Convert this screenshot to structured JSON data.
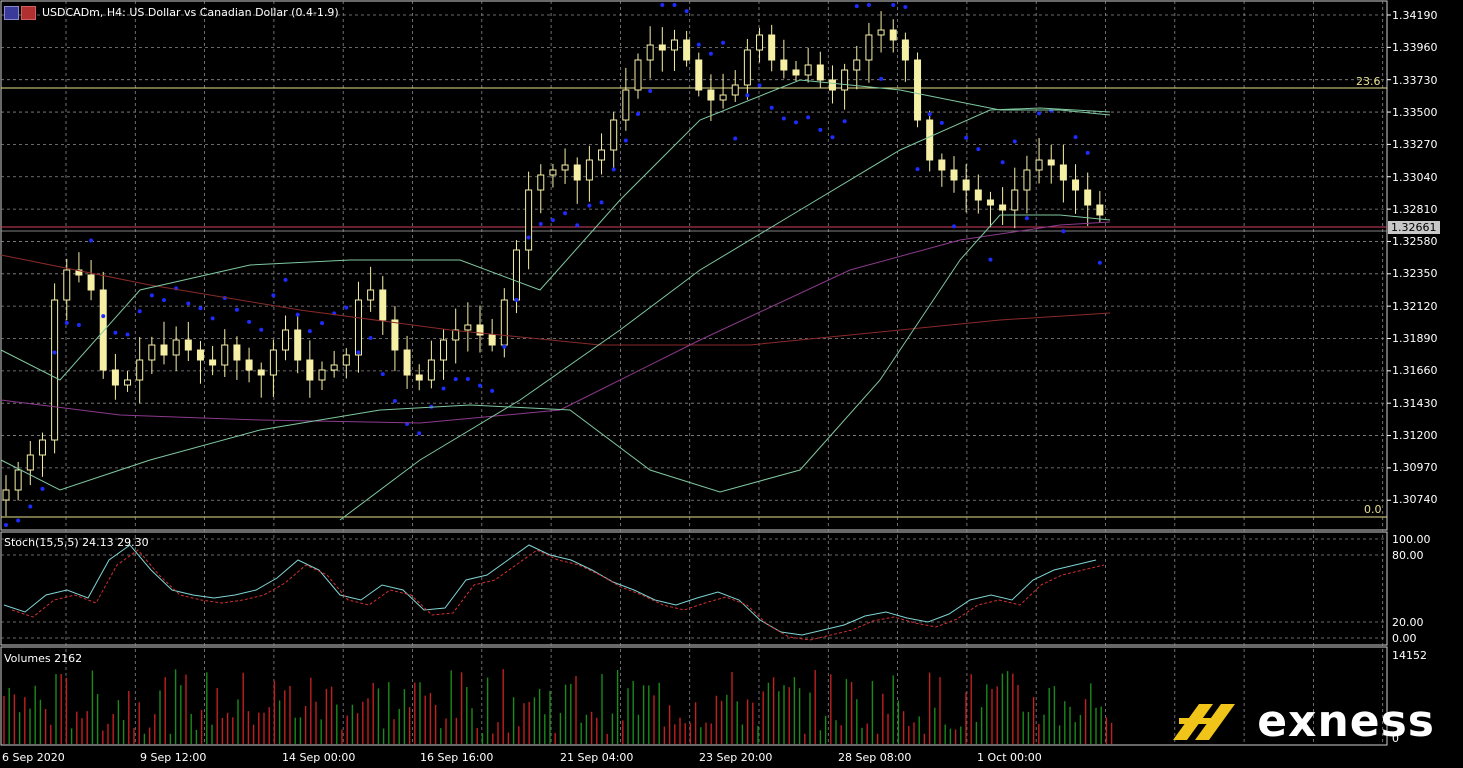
{
  "window": {
    "title": "USDCADm, H4:  US Dollar vs Canadian Dollar  (0.4-1.9)"
  },
  "price_axis": {
    "labels": [
      "1.34190",
      "1.33960",
      "1.33730",
      "1.33500",
      "1.33270",
      "1.33040",
      "1.32810",
      "1.32580",
      "1.32350",
      "1.32120",
      "1.31890",
      "1.31660",
      "1.31430",
      "1.31200",
      "1.30970",
      "1.30740"
    ],
    "current_price": "1.32661"
  },
  "fibonacci": {
    "level_top": "23.6",
    "level_bottom": "0.0"
  },
  "stochastic": {
    "title": "Stoch(15,5,5) 24.13 29.30",
    "labels": [
      "100.00",
      "80.00",
      "20.00",
      "0.00"
    ]
  },
  "volumes": {
    "title": "Volumes 2162",
    "labels": [
      "14152",
      "0"
    ]
  },
  "time_axis": {
    "labels": [
      "6 Sep 2020",
      "9 Sep 12:00",
      "14 Sep 00:00",
      "16 Sep 16:00",
      "21 Sep 04:00",
      "23 Sep 20:00",
      "28 Sep 08:00",
      "1 Oct 00:00"
    ]
  },
  "brand": {
    "name": "exness"
  },
  "colors": {
    "background": "#000000",
    "grid": "#8a8a8a",
    "candle": "#f6f0a6",
    "parabolic_sar": "#1e2cff",
    "bands": "#7fc7a0",
    "ma_slow": "#8a2a2a",
    "ma_purple": "#8c3a8c",
    "stoch_main": "#7fd4d4",
    "stoch_signal": "#d03030",
    "volume_up": "#1a8a1a",
    "volume_down": "#c02020",
    "brand_accent": "#f0c419"
  }
}
